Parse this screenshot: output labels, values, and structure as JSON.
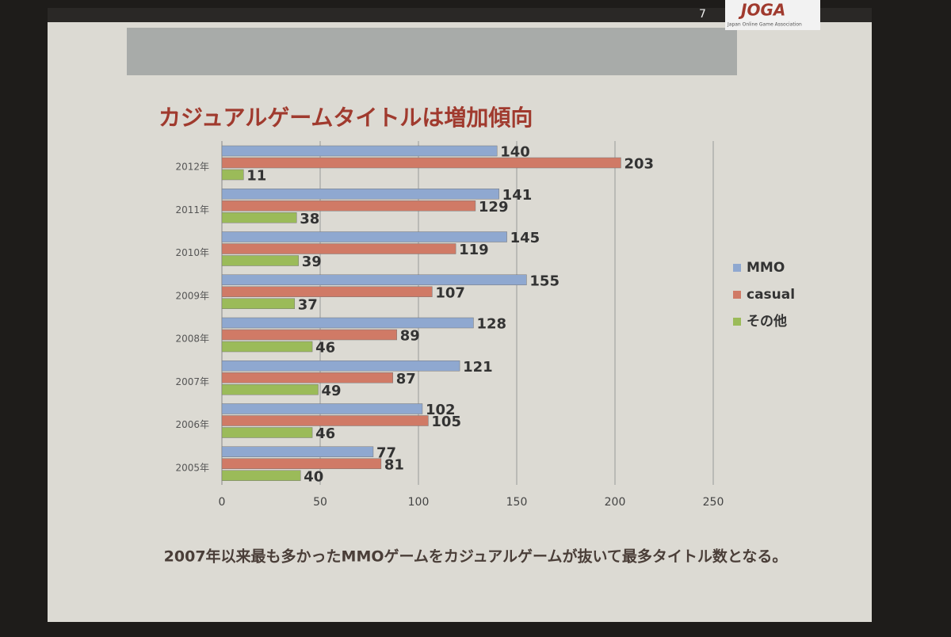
{
  "slide": {
    "page_number": "7",
    "logo": "JOGA",
    "logo_subtitle": "Japan Online Game Association"
  },
  "chart_data": {
    "type": "bar",
    "orientation": "horizontal",
    "title": "カジュアルゲームタイトルは増加傾向",
    "footnote": "2007年以来最も多かったMMOゲームをカジュアルゲームが抜いて最多タイトル数となる。",
    "categories": [
      "2005年",
      "2006年",
      "2007年",
      "2008年",
      "2009年",
      "2010年",
      "2011年",
      "2012年"
    ],
    "series": [
      {
        "name": "MMO",
        "color": "#8fa8d0",
        "values": [
          77,
          102,
          121,
          128,
          155,
          145,
          141,
          140
        ]
      },
      {
        "name": "casual",
        "color": "#d07a66",
        "values": [
          81,
          105,
          87,
          89,
          107,
          119,
          129,
          203
        ]
      },
      {
        "name": "その他",
        "color": "#9bbb59",
        "values": [
          40,
          46,
          49,
          46,
          37,
          39,
          38,
          11
        ]
      }
    ],
    "xlim": [
      0,
      250
    ],
    "xticks": [
      0,
      50,
      100,
      150,
      200,
      250
    ],
    "grid": true,
    "legend": "right"
  }
}
